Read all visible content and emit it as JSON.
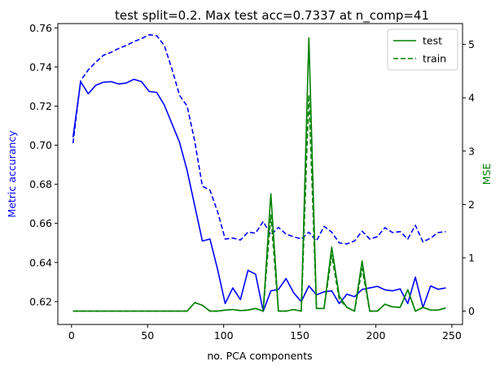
{
  "chart_data": {
    "type": "line",
    "title": "test split=0.2. Max test acc=0.7337 at n_comp=41",
    "xlabel": "no. PCA components",
    "ylabel_left": "Metric accurancy",
    "ylabel_right": "MSE",
    "xlim": [
      -9,
      257
    ],
    "ylim_left": [
      0.6083,
      0.7622
    ],
    "ylim_right": [
      -0.25,
      5.39
    ],
    "x_ticks": [
      0,
      50,
      100,
      150,
      200,
      250
    ],
    "y_left_ticks": [
      0.62,
      0.64,
      0.66,
      0.68,
      0.7,
      0.72,
      0.74,
      0.76
    ],
    "y_right_ticks": [
      0,
      1,
      2,
      3,
      4,
      5
    ],
    "y_left_tick_labels": [
      "0.62",
      "0.64",
      "0.66",
      "0.68",
      "0.70",
      "0.72",
      "0.74",
      "0.76"
    ],
    "colors": {
      "accuracy": "#0000ff",
      "mse": "#008000",
      "axis": "#000000"
    },
    "legend": {
      "placement": "top-right",
      "entries": [
        {
          "label": "test",
          "style": "solid"
        },
        {
          "label": "train",
          "style": "dashed"
        }
      ]
    },
    "x": [
      1,
      6,
      11,
      16,
      21,
      26,
      31,
      36,
      41,
      46,
      51,
      56,
      61,
      66,
      71,
      76,
      81,
      86,
      91,
      96,
      101,
      106,
      111,
      116,
      121,
      126,
      131,
      136,
      141,
      146,
      151,
      156,
      161,
      166,
      171,
      176,
      181,
      186,
      191,
      196,
      201,
      206,
      211,
      216,
      221,
      226,
      231,
      236,
      241,
      246
    ],
    "series": [
      {
        "name": "test",
        "axis": "left",
        "color": "#0000ff",
        "style": "solid",
        "values": [
          0.704,
          0.7325,
          0.7263,
          0.7307,
          0.7322,
          0.7325,
          0.7313,
          0.7318,
          0.7337,
          0.7325,
          0.7275,
          0.727,
          0.7205,
          0.711,
          0.7015,
          0.687,
          0.669,
          0.651,
          0.652,
          0.6365,
          0.619,
          0.627,
          0.621,
          0.636,
          0.634,
          0.615,
          0.6255,
          0.6262,
          0.6318,
          0.6245,
          0.62,
          0.628,
          0.6235,
          0.625,
          0.6255,
          0.619,
          0.6238,
          0.6225,
          0.6262,
          0.627,
          0.6278,
          0.626,
          0.6255,
          0.6265,
          0.619,
          0.6325,
          0.617,
          0.628,
          0.6263,
          0.627
        ]
      },
      {
        "name": "train",
        "axis": "left",
        "color": "#0000ff",
        "style": "dashed",
        "values": [
          0.701,
          0.733,
          0.7385,
          0.7425,
          0.746,
          0.7475,
          0.7495,
          0.751,
          0.753,
          0.7545,
          0.7565,
          0.756,
          0.751,
          0.739,
          0.7255,
          0.72,
          0.702,
          0.679,
          0.677,
          0.666,
          0.652,
          0.6525,
          0.6515,
          0.6555,
          0.655,
          0.661,
          0.654,
          0.658,
          0.6545,
          0.6532,
          0.652,
          0.6555,
          0.651,
          0.6585,
          0.6555,
          0.65,
          0.6495,
          0.651,
          0.656,
          0.652,
          0.6532,
          0.6578,
          0.6553,
          0.6558,
          0.652,
          0.659,
          0.6505,
          0.6525,
          0.6553,
          0.6558
        ]
      },
      {
        "name": "test",
        "axis": "right",
        "color": "#008000",
        "style": "solid",
        "values": [
          0.0,
          0.0,
          0.0,
          0.0,
          0.0,
          0.0,
          0.0,
          0.0,
          0.0,
          0.0,
          0.0,
          0.0,
          0.0,
          0.0,
          0.0,
          0.0,
          0.16,
          0.11,
          0.0,
          0.0,
          0.02,
          0.03,
          0.01,
          0.02,
          0.05,
          0.0,
          2.2,
          0.0,
          0.0,
          0.03,
          0.0,
          5.12,
          0.05,
          0.05,
          1.2,
          0.28,
          0.07,
          0.0,
          0.94,
          0.0,
          0.0,
          0.13,
          0.08,
          0.07,
          0.4,
          0.0,
          0.07,
          0.02,
          0.02,
          0.06
        ]
      },
      {
        "name": "train",
        "axis": "right",
        "color": "#008000",
        "style": "dashed",
        "values": [
          0.0,
          0.0,
          0.0,
          0.0,
          0.0,
          0.0,
          0.0,
          0.0,
          0.0,
          0.0,
          0.0,
          0.0,
          0.0,
          0.0,
          0.0,
          0.0,
          0.16,
          0.11,
          0.0,
          0.0,
          0.02,
          0.03,
          0.01,
          0.02,
          0.05,
          0.0,
          1.8,
          0.0,
          0.0,
          0.03,
          0.0,
          4.05,
          0.05,
          0.05,
          1.05,
          0.22,
          0.07,
          0.0,
          0.8,
          0.0,
          0.0,
          0.13,
          0.08,
          0.07,
          0.4,
          0.0,
          0.07,
          0.02,
          0.02,
          0.06
        ]
      }
    ]
  }
}
